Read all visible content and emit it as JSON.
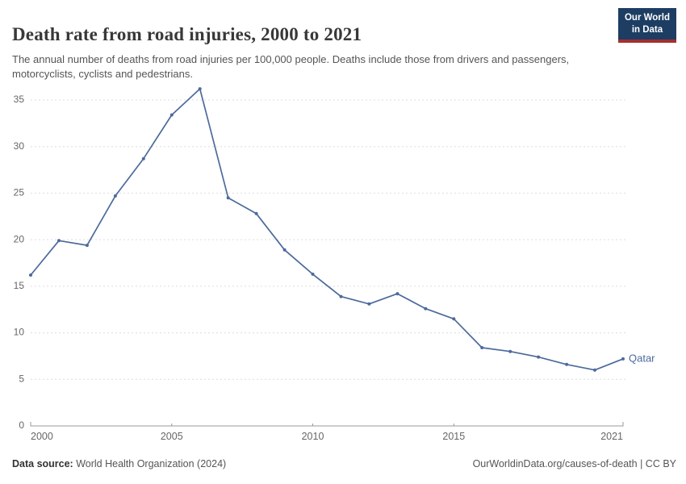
{
  "header": {
    "title": "Death rate from road injuries, 2000 to 2021",
    "subtitle": "The annual number of deaths from road injuries per 100,000 people. Deaths include those from drivers and passengers, motorcyclists, cyclists and pedestrians.",
    "logo": {
      "line1": "Our World",
      "line2": "in Data"
    }
  },
  "chart_data": {
    "type": "line",
    "title": "Death rate from road injuries, 2000 to 2021",
    "x": [
      2000,
      2001,
      2002,
      2003,
      2004,
      2005,
      2006,
      2007,
      2008,
      2009,
      2010,
      2011,
      2012,
      2013,
      2014,
      2015,
      2016,
      2017,
      2018,
      2019,
      2020,
      2021
    ],
    "series": [
      {
        "name": "Qatar",
        "color": "#4C6A9C",
        "values": [
          16.2,
          19.9,
          19.4,
          24.7,
          28.7,
          33.4,
          36.2,
          24.5,
          22.8,
          18.9,
          16.3,
          13.9,
          13.1,
          14.2,
          12.6,
          11.5,
          8.4,
          8.0,
          7.4,
          6.6,
          6.0,
          7.2
        ]
      }
    ],
    "xticks": [
      2000,
      2005,
      2010,
      2015,
      2021
    ],
    "yticks": [
      0,
      5,
      10,
      15,
      20,
      25,
      30,
      35
    ],
    "ylim": [
      0,
      37
    ],
    "xlabel": "",
    "ylabel": "",
    "grid": "horizontal-dashed",
    "legend": "line-end-label"
  },
  "colors": {
    "line": "#4C6A9C",
    "grid": "#dddddd",
    "axis": "#999999",
    "tick": "#666666"
  },
  "footer": {
    "source_label": "Data source:",
    "source_value": " World Health Organization (2024)",
    "citation": "OurWorldinData.org/causes-of-death | CC BY"
  }
}
